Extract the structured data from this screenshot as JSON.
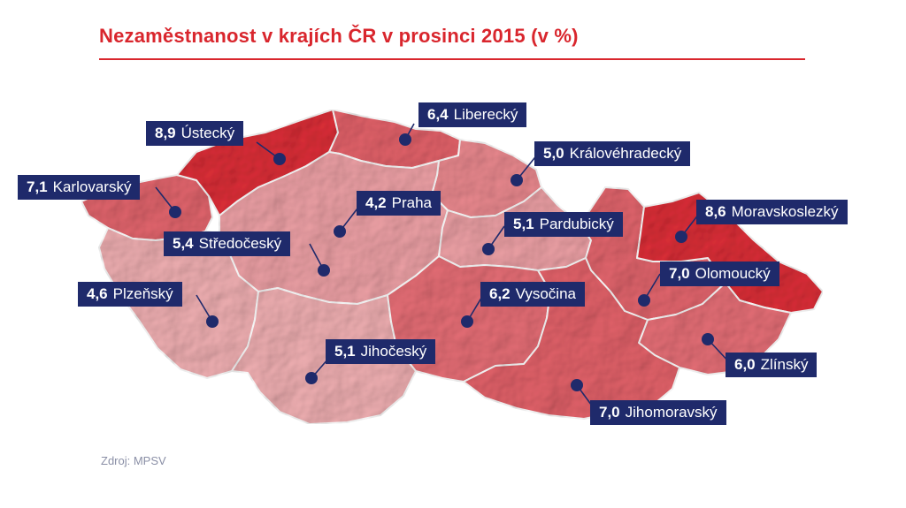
{
  "title": "Nezaměstnanost v krajích ČR v prosinci 2015 (v %)",
  "source": "Zdroj: MPSV",
  "colors": {
    "title": "#d9262d",
    "label_bg": "#1f2a6b",
    "marker": "#1f2a6b",
    "border": "#ffffff",
    "shade_low": "#f2b1b4",
    "shade_mid": "#e87078",
    "shade_high": "#de2f38"
  },
  "regions": [
    {
      "id": "ustecky",
      "name": "Ústecký",
      "value": "8,9"
    },
    {
      "id": "liberecky",
      "name": "Liberecký",
      "value": "6,4"
    },
    {
      "id": "kralovehradecky",
      "name": "Královéhradecký",
      "value": "5,0"
    },
    {
      "id": "karlovarsky",
      "name": "Karlovarský",
      "value": "7,1"
    },
    {
      "id": "praha",
      "name": "Praha",
      "value": "4,2"
    },
    {
      "id": "stredocesky",
      "name": "Středočeský",
      "value": "5,4"
    },
    {
      "id": "pardubicky",
      "name": "Pardubický",
      "value": "5,1"
    },
    {
      "id": "moravskoslezsky",
      "name": "Moravskoslezký",
      "value": "8,6"
    },
    {
      "id": "olomoucky",
      "name": "Olomoucký",
      "value": "7,0"
    },
    {
      "id": "plzensky",
      "name": "Plzeňský",
      "value": "4,6"
    },
    {
      "id": "vysocina",
      "name": "Vysočina",
      "value": "6,2"
    },
    {
      "id": "jihocesky",
      "name": "Jihočeský",
      "value": "5,1"
    },
    {
      "id": "zlinsky",
      "name": "Zlínský",
      "value": "6,0"
    },
    {
      "id": "jihomoravsky",
      "name": "Jihomoravský",
      "value": "7,0"
    }
  ]
}
